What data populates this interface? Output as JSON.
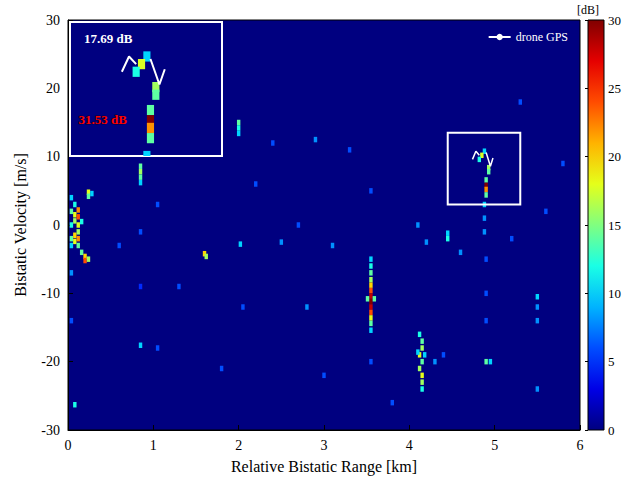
{
  "chart_data": {
    "type": "heatmap",
    "x_label": "Relative Bistatic Range [km]",
    "y_label": "Bistatic Velocity [m/s]",
    "xlim": [
      0,
      6
    ],
    "xticks": [
      0,
      1,
      2,
      3,
      4,
      5,
      6
    ],
    "ylim": [
      -30,
      30
    ],
    "yticks": [
      -30,
      -20,
      -10,
      0,
      10,
      20,
      30
    ],
    "cell_size": [
      0.04,
      0.8
    ],
    "cells": [
      [
        0.04,
        4,
        10
      ],
      [
        0.04,
        2,
        14
      ],
      [
        0.04,
        0,
        12
      ],
      [
        0.04,
        -2,
        14
      ],
      [
        0.04,
        -3,
        10
      ],
      [
        0.08,
        3,
        12
      ],
      [
        0.08,
        1.5,
        18
      ],
      [
        0.08,
        0.6,
        16
      ],
      [
        0.08,
        -1.5,
        20
      ],
      [
        0.08,
        -2.4,
        18
      ],
      [
        0.12,
        2.2,
        22
      ],
      [
        0.12,
        1.2,
        24
      ],
      [
        0.12,
        0,
        18
      ],
      [
        0.12,
        -1,
        16
      ],
      [
        0.12,
        -2,
        22
      ],
      [
        0.12,
        -3,
        14
      ],
      [
        0.16,
        0.5,
        12
      ],
      [
        0.16,
        -4,
        14
      ],
      [
        0.2,
        -4.6,
        20
      ],
      [
        0.2,
        -5.2,
        24
      ],
      [
        0.24,
        4.8,
        18
      ],
      [
        0.24,
        4.2,
        14
      ],
      [
        0.24,
        -5,
        16
      ],
      [
        0.28,
        4.6,
        10
      ],
      [
        0.04,
        -7,
        8
      ],
      [
        0.08,
        -26.3,
        12
      ],
      [
        0.04,
        -14,
        6
      ],
      [
        0.85,
        8.6,
        14
      ],
      [
        0.85,
        7.8,
        16
      ],
      [
        0.85,
        7,
        14
      ],
      [
        0.85,
        6.2,
        10
      ],
      [
        0.85,
        -17.6,
        10
      ],
      [
        0.85,
        -1,
        6
      ],
      [
        0.85,
        -9,
        5
      ],
      [
        1.05,
        3,
        6
      ],
      [
        1.05,
        -18,
        6
      ],
      [
        1.6,
        -4.2,
        20
      ],
      [
        1.62,
        -4.6,
        16
      ],
      [
        2.0,
        15,
        14
      ],
      [
        2.0,
        14.2,
        12
      ],
      [
        2.0,
        13.4,
        10
      ],
      [
        2.02,
        -2.8,
        10
      ],
      [
        2.05,
        -12,
        6
      ],
      [
        2.4,
        12,
        6
      ],
      [
        2.5,
        -2.5,
        8
      ],
      [
        2.8,
        -12,
        8
      ],
      [
        2.9,
        12.5,
        8
      ],
      [
        3.1,
        -3,
        8
      ],
      [
        3.55,
        -5,
        10
      ],
      [
        3.55,
        -6,
        12
      ],
      [
        3.55,
        -7,
        14
      ],
      [
        3.55,
        -8,
        16
      ],
      [
        3.55,
        -8.8,
        20
      ],
      [
        3.55,
        -9.6,
        24
      ],
      [
        3.55,
        -10.4,
        28
      ],
      [
        3.55,
        -11.2,
        30
      ],
      [
        3.55,
        -12,
        28
      ],
      [
        3.55,
        -12.8,
        24
      ],
      [
        3.55,
        -13.6,
        18
      ],
      [
        3.55,
        -14.4,
        14
      ],
      [
        3.55,
        -15.4,
        10
      ],
      [
        3.51,
        -10.8,
        14
      ],
      [
        3.59,
        -10.8,
        14
      ],
      [
        3.55,
        5,
        6
      ],
      [
        3.55,
        -20,
        6
      ],
      [
        4.12,
        -16,
        12
      ],
      [
        4.15,
        -17,
        14
      ],
      [
        4.15,
        -18,
        16
      ],
      [
        4.12,
        -19,
        18
      ],
      [
        4.15,
        -20,
        14
      ],
      [
        4.12,
        -21,
        16
      ],
      [
        4.15,
        -22,
        18
      ],
      [
        4.15,
        -23,
        16
      ],
      [
        4.15,
        -24,
        12
      ],
      [
        4.1,
        -18.6,
        10
      ],
      [
        4.18,
        -19,
        10
      ],
      [
        4.1,
        0,
        8
      ],
      [
        4.2,
        -2.5,
        8
      ],
      [
        4.45,
        -1.2,
        10
      ],
      [
        4.45,
        -2,
        12
      ],
      [
        4.3,
        -20,
        8
      ],
      [
        4.4,
        -19,
        6
      ],
      [
        4.88,
        10.8,
        10
      ],
      [
        4.85,
        10.2,
        17.69
      ],
      [
        4.82,
        9.6,
        12
      ],
      [
        4.93,
        8.4,
        16
      ],
      [
        4.93,
        7.8,
        14
      ],
      [
        4.9,
        6.6,
        14
      ],
      [
        4.9,
        5.8,
        31.53
      ],
      [
        4.9,
        5.2,
        22
      ],
      [
        4.9,
        4.4,
        14
      ],
      [
        4.88,
        3,
        10
      ],
      [
        4.88,
        1,
        8
      ],
      [
        4.88,
        -1,
        8
      ],
      [
        4.9,
        -5,
        6
      ],
      [
        4.9,
        -10,
        6
      ],
      [
        4.9,
        -20,
        14
      ],
      [
        4.95,
        -20,
        10
      ],
      [
        4.9,
        -14,
        6
      ],
      [
        5.5,
        -10.5,
        10
      ],
      [
        5.5,
        -12,
        8
      ],
      [
        5.5,
        -14,
        8
      ],
      [
        5.5,
        -24,
        8
      ],
      [
        5.6,
        2,
        6
      ],
      [
        0.6,
        -3,
        6
      ],
      [
        1.3,
        -9,
        6
      ],
      [
        1.8,
        -21,
        6
      ],
      [
        2.2,
        6,
        6
      ],
      [
        2.7,
        0,
        6
      ],
      [
        3.3,
        11,
        6
      ],
      [
        3.8,
        -26,
        6
      ],
      [
        4.6,
        -4,
        8
      ],
      [
        5.2,
        -2,
        6
      ],
      [
        5.8,
        9,
        6
      ],
      [
        5.3,
        18,
        6
      ],
      [
        3.0,
        -22,
        6
      ]
    ],
    "colorbar": {
      "label": "[dB]",
      "range": [
        0,
        30
      ],
      "ticks": [
        0,
        5,
        10,
        15,
        20,
        25,
        30
      ]
    },
    "series": [
      {
        "name": "drone GPS",
        "type": "line",
        "color": "#ffffff",
        "x": [
          4.74,
          4.78,
          4.82,
          4.86,
          4.9,
          4.95,
          4.98
        ],
        "values": [
          9.6,
          10.8,
          10.2,
          null,
          10.6,
          8.6,
          9.8
        ]
      }
    ],
    "legend": "upper right",
    "box": {
      "xlim": [
        4.45,
        5.3
      ],
      "ylim": [
        3,
        13.5
      ]
    },
    "annotations": [
      {
        "text": "17.69 dB",
        "color": "#ffffff"
      },
      {
        "text": "31.53 dB",
        "color": "#ff0000"
      }
    ]
  }
}
